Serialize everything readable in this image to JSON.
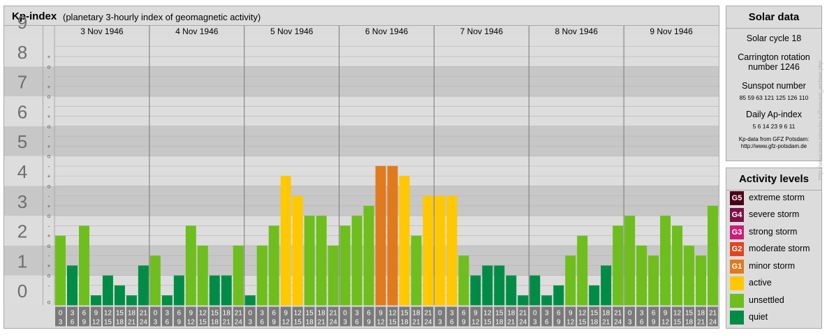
{
  "header": {
    "title": "Kp-index",
    "subtitle": "(planetary 3-hourly index of geomagnetic activity)"
  },
  "chart_data": {
    "type": "bar",
    "y_range": [
      0,
      9
    ],
    "y_tick_labels": [
      "0",
      "1",
      "2",
      "3",
      "4",
      "5",
      "6",
      "7",
      "8",
      "9"
    ],
    "minor_ticks": [
      "-",
      "o",
      "+"
    ],
    "days": [
      "3 Nov 1946",
      "4 Nov 1946",
      "5 Nov 1946",
      "6 Nov 1946",
      "7 Nov 1946",
      "8 Nov 1946",
      "9 Nov 1946"
    ],
    "interval_start": [
      "0",
      "3",
      "6",
      "9",
      "12",
      "15",
      "18",
      "21"
    ],
    "interval_end": [
      "3",
      "6",
      "9",
      "12",
      "15",
      "18",
      "21",
      "24"
    ],
    "values": [
      2.333,
      1.333,
      2.667,
      0.333,
      1.0,
      0.667,
      0.333,
      1.333,
      1.667,
      0.333,
      1.0,
      2.667,
      2.0,
      1.0,
      1.0,
      2.0,
      0.333,
      2.0,
      2.667,
      4.333,
      3.667,
      3.0,
      3.0,
      2.0,
      2.667,
      3.0,
      3.333,
      4.667,
      4.667,
      4.333,
      2.333,
      3.667,
      3.667,
      3.667,
      1.667,
      1.0,
      1.333,
      1.333,
      1.0,
      0.333,
      1.0,
      0.333,
      0.667,
      1.667,
      2.333,
      0.667,
      1.333,
      2.667,
      3.0,
      2.0,
      1.667,
      3.0,
      2.667,
      2.0,
      1.667,
      3.333
    ],
    "level_colors": {
      "quiet": "#008c46",
      "unsettled": "#6ebe1e",
      "active": "#ffc800",
      "minor": "#e07a1e",
      "grid_dark": "#c7c7c7",
      "grid_light": "#dddddd",
      "axis_box": "#7a7a7a"
    }
  },
  "solar": {
    "title": "Solar data",
    "cycle": "Solar cycle 18",
    "carrington_1": "Carrington rotation",
    "carrington_2": "number 1246",
    "sunspot_title": "Sunspot number",
    "sunspots": "85   59   63  121  125  126  110",
    "ap_title": "Daily Ap-index",
    "ap": "5    6    14   23    9    6    11",
    "source_1": "Kp-data from  GFZ Potsdam:",
    "source_2": "http://www.gfz-potsdam.de"
  },
  "legend": {
    "title": "Activity levels",
    "items": [
      {
        "code": "G5",
        "label": "extreme storm",
        "color": "#4a0018"
      },
      {
        "code": "G4",
        "label": "severe storm",
        "color": "#7a1246"
      },
      {
        "code": "G3",
        "label": "strong storm",
        "color": "#c81e78"
      },
      {
        "code": "G2",
        "label": "moderate storm",
        "color": "#e0461e"
      },
      {
        "code": "G1",
        "label": "minor storm",
        "color": "#e07a1e"
      },
      {
        "code": "",
        "label": "active",
        "color": "#ffc800"
      },
      {
        "code": "",
        "label": "unsettled",
        "color": "#6ebe1e"
      },
      {
        "code": "",
        "label": "quiet",
        "color": "#008c46"
      }
    ]
  },
  "watermark": "http://www.tesis.lebedev.ru/forecast_archive.php"
}
